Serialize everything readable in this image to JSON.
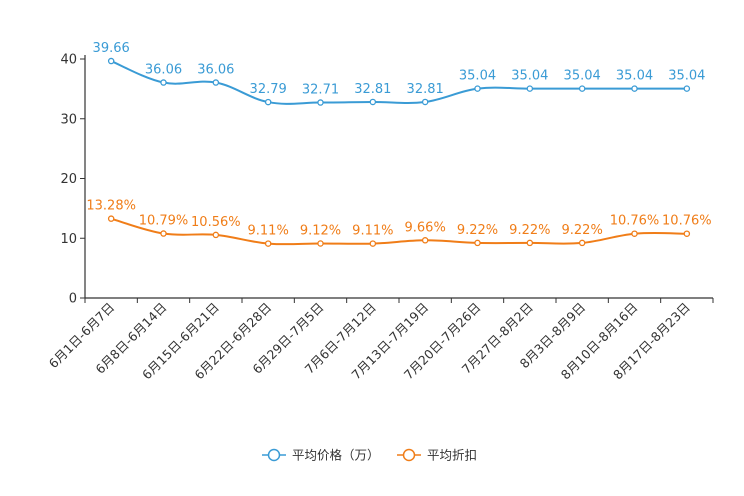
{
  "chart_data": {
    "type": "line",
    "title": "",
    "xlabel": "",
    "ylabel": "",
    "ylim": [
      0,
      40
    ],
    "yticks": [
      0,
      10,
      20,
      30,
      40
    ],
    "grid": false,
    "legend_position": "bottom-center",
    "categories": [
      "6月1日-6月7日",
      "6月8日-6月14日",
      "6月15日-6月21日",
      "6月22日-6月28日",
      "6月29日-7月5日",
      "7月6日-7月12日",
      "7月13日-7月19日",
      "7月20日-7月26日",
      "7月27日-8月2日",
      "8月3日-8月9日",
      "8月10日-8月16日",
      "8月17日-8月23日"
    ],
    "series": [
      {
        "name": "平均价格（万）",
        "color": "#3a9bd5",
        "values": [
          39.66,
          36.06,
          36.06,
          32.79,
          32.71,
          32.81,
          32.81,
          35.04,
          35.04,
          35.04,
          35.04,
          35.04
        ],
        "labels": [
          "39.66",
          "36.06",
          "36.06",
          "32.79",
          "32.71",
          "32.81",
          "32.81",
          "35.04",
          "35.04",
          "35.04",
          "35.04",
          "35.04"
        ]
      },
      {
        "name": "平均折扣",
        "color": "#f07d18",
        "values": [
          13.28,
          10.79,
          10.56,
          9.11,
          9.12,
          9.11,
          9.66,
          9.22,
          9.22,
          9.22,
          10.76,
          10.76
        ],
        "labels": [
          "13.28%",
          "10.79%",
          "10.56%",
          "9.11%",
          "9.12%",
          "9.11%",
          "9.66%",
          "9.22%",
          "9.22%",
          "9.22%",
          "10.76%",
          "10.76%"
        ]
      }
    ]
  }
}
